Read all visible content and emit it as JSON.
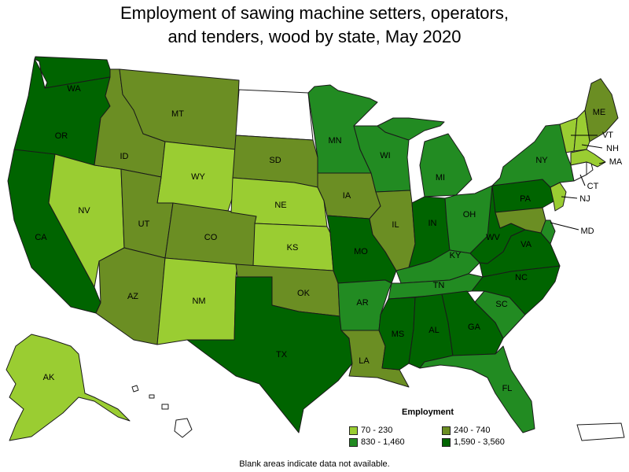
{
  "title": {
    "line1": "Employment of sawing machine setters, operators,",
    "line2": "and tenders, wood by state, May 2020"
  },
  "legend": {
    "title": "Employment",
    "items": [
      {
        "label": "70 - 230",
        "color": "#9acd32"
      },
      {
        "label": "240 - 740",
        "color": "#6b8e23"
      },
      {
        "label": "830 - 1,460",
        "color": "#228b22"
      },
      {
        "label": "1,590 - 3,560",
        "color": "#006400"
      }
    ]
  },
  "footnote": "Blank areas indicate data not available.",
  "states": {
    "WA": {
      "label": "WA",
      "bin": 3
    },
    "OR": {
      "label": "OR",
      "bin": 3
    },
    "CA": {
      "label": "CA",
      "bin": 3
    },
    "NV": {
      "label": "NV",
      "bin": 0
    },
    "ID": {
      "label": "ID",
      "bin": 1
    },
    "MT": {
      "label": "MT",
      "bin": 1
    },
    "WY": {
      "label": "WY",
      "bin": 0
    },
    "UT": {
      "label": "UT",
      "bin": 1
    },
    "CO": {
      "label": "CO",
      "bin": 1
    },
    "AZ": {
      "label": "AZ",
      "bin": 1
    },
    "NM": {
      "label": "NM",
      "bin": 0
    },
    "ND": {
      "label": "",
      "bin": null
    },
    "SD": {
      "label": "SD",
      "bin": 1
    },
    "NE": {
      "label": "NE",
      "bin": 0
    },
    "KS": {
      "label": "KS",
      "bin": 0
    },
    "OK": {
      "label": "OK",
      "bin": 1
    },
    "TX": {
      "label": "TX",
      "bin": 3
    },
    "MN": {
      "label": "MN",
      "bin": 2
    },
    "IA": {
      "label": "IA",
      "bin": 1
    },
    "MO": {
      "label": "MO",
      "bin": 3
    },
    "AR": {
      "label": "AR",
      "bin": 2
    },
    "LA": {
      "label": "LA",
      "bin": 1
    },
    "WI": {
      "label": "WI",
      "bin": 2
    },
    "IL": {
      "label": "IL",
      "bin": 1
    },
    "MI": {
      "label": "MI",
      "bin": 2
    },
    "IN": {
      "label": "IN",
      "bin": 3
    },
    "OH": {
      "label": "OH",
      "bin": 2
    },
    "KY": {
      "label": "KY",
      "bin": 2
    },
    "TN": {
      "label": "TN",
      "bin": 2
    },
    "MS": {
      "label": "MS",
      "bin": 3
    },
    "AL": {
      "label": "AL",
      "bin": 3
    },
    "GA": {
      "label": "GA",
      "bin": 3
    },
    "FL": {
      "label": "FL",
      "bin": 2
    },
    "SC": {
      "label": "SC",
      "bin": 2
    },
    "NC": {
      "label": "NC",
      "bin": 3
    },
    "VA": {
      "label": "VA",
      "bin": 3
    },
    "WV": {
      "label": "WV",
      "bin": 3
    },
    "PA": {
      "label": "PA",
      "bin": 3
    },
    "NY": {
      "label": "NY",
      "bin": 2
    },
    "ME": {
      "label": "ME",
      "bin": 1
    },
    "VT": {
      "label": "VT",
      "bin": 0
    },
    "NH": {
      "label": "NH",
      "bin": 0
    },
    "MA": {
      "label": "MA",
      "bin": 0
    },
    "CT": {
      "label": "CT",
      "bin": null
    },
    "RI": {
      "label": "",
      "bin": null
    },
    "NJ": {
      "label": "NJ",
      "bin": 0
    },
    "DE": {
      "label": "",
      "bin": 2
    },
    "MD": {
      "label": "MD",
      "bin": 1
    },
    "AK": {
      "label": "AK",
      "bin": 0
    },
    "HI": {
      "label": "",
      "bin": null
    },
    "PR": {
      "label": "",
      "bin": null
    }
  }
}
